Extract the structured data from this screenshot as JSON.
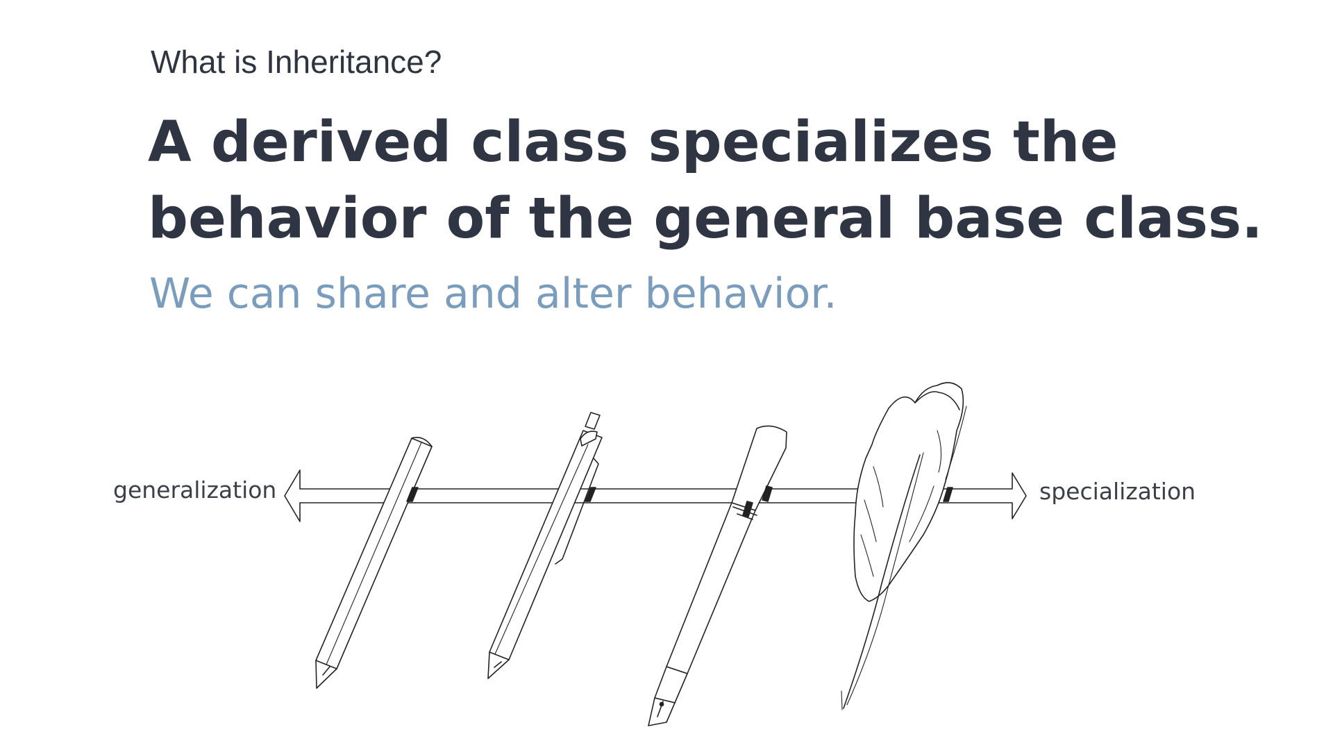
{
  "slide": {
    "kicker": "What is Inheritance?",
    "headline_line1": "A derived class specializes the",
    "headline_line2": "behavior of the general base class.",
    "subline": "We can share and alter behavior."
  },
  "diagram": {
    "left_label": "generalization",
    "right_label": "specialization",
    "items": [
      "pencil-icon",
      "mechanical-pencil-icon",
      "fountain-pen-icon",
      "quill-icon"
    ]
  },
  "colors": {
    "text_dark": "#2f3542",
    "subline_blue": "#7b9dbd",
    "line_art": "#222222"
  }
}
